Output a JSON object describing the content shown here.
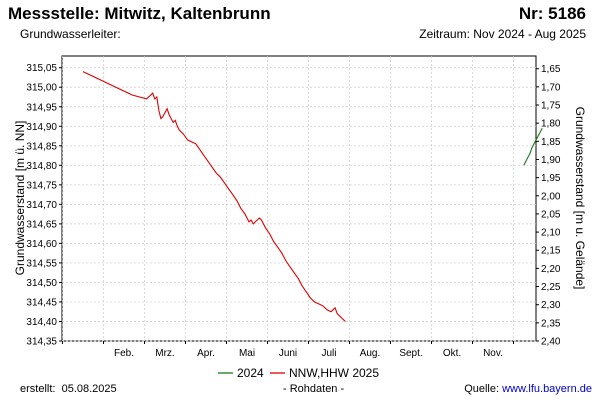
{
  "header": {
    "title": "Messstelle: Mitwitz, Kaltenbrunn",
    "nr": "Nr: 5186",
    "subtitle_left": "Grundwasserleiter:",
    "subtitle_right": "Zeitraum: Nov 2024 - Aug 2025"
  },
  "footer": {
    "created_label": "erstellt:",
    "created_date": "05.08.2025",
    "note": "- Rohdaten -",
    "source_label": "Quelle:",
    "source_link": "www.lfu.bayern.de"
  },
  "colors": {
    "series_2024": "#1a7a1a",
    "series_2025": "#e00000",
    "grid": "#cccccc"
  },
  "chart_data": {
    "type": "line",
    "ylabel_left": "Grundwasserstand [m ü. NN]",
    "ylabel_right": "Grundwasserstand [m u. Gelände]",
    "ylim_left": [
      314.35,
      315.08
    ],
    "ylim_right": [
      2.4,
      1.615
    ],
    "yticks_left": [
      "315,05",
      "315,00",
      "314,95",
      "314,90",
      "314,85",
      "314,80",
      "314,75",
      "314,70",
      "314,65",
      "314,60",
      "314,55",
      "314,50",
      "314,45",
      "314,40",
      "314,35"
    ],
    "yticks_right": [
      "1,65",
      "1,70",
      "1,75",
      "1,80",
      "1,85",
      "1,90",
      "1,95",
      "2,00",
      "2,05",
      "2,10",
      "2,15",
      "2,20",
      "2,25",
      "2,30",
      "2,35",
      "2,40"
    ],
    "xticks": [
      "Feb.",
      "Mrz.",
      "Apr.",
      "Mai",
      "Juni",
      "Juli",
      "Aug.",
      "Sept.",
      "Okt.",
      "Nov."
    ],
    "grid": true,
    "legend_position": "bottom",
    "series": [
      {
        "name": "2024",
        "points": [
          [
            10.75,
            314.8
          ],
          [
            10.8,
            314.81
          ],
          [
            10.85,
            314.82
          ],
          [
            10.9,
            314.83
          ],
          [
            10.95,
            314.845
          ],
          [
            11.0,
            314.855
          ],
          [
            11.05,
            314.865
          ],
          [
            11.1,
            314.875
          ],
          [
            11.15,
            314.885
          ],
          [
            11.2,
            314.895
          ]
        ]
      },
      {
        "name": "NNW,HHW 2025",
        "points": [
          [
            0.0,
            315.04
          ],
          [
            0.4,
            315.02
          ],
          [
            0.8,
            315.0
          ],
          [
            1.2,
            314.98
          ],
          [
            1.55,
            314.97
          ],
          [
            1.7,
            314.985
          ],
          [
            1.75,
            314.97
          ],
          [
            1.8,
            314.975
          ],
          [
            1.85,
            314.94
          ],
          [
            1.9,
            314.92
          ],
          [
            1.95,
            314.925
          ],
          [
            2.0,
            314.935
          ],
          [
            2.05,
            314.945
          ],
          [
            2.1,
            314.93
          ],
          [
            2.15,
            314.92
          ],
          [
            2.2,
            314.91
          ],
          [
            2.25,
            314.915
          ],
          [
            2.3,
            314.9
          ],
          [
            2.35,
            314.89
          ],
          [
            2.45,
            314.88
          ],
          [
            2.55,
            314.865
          ],
          [
            2.65,
            314.86
          ],
          [
            2.75,
            314.855
          ],
          [
            2.85,
            314.84
          ],
          [
            2.95,
            314.825
          ],
          [
            3.05,
            314.81
          ],
          [
            3.15,
            314.795
          ],
          [
            3.25,
            314.78
          ],
          [
            3.35,
            314.77
          ],
          [
            3.45,
            314.755
          ],
          [
            3.55,
            314.74
          ],
          [
            3.65,
            314.725
          ],
          [
            3.75,
            314.71
          ],
          [
            3.85,
            314.69
          ],
          [
            3.95,
            314.675
          ],
          [
            4.0,
            314.665
          ],
          [
            4.05,
            314.655
          ],
          [
            4.1,
            314.66
          ],
          [
            4.15,
            314.65
          ],
          [
            4.2,
            314.655
          ],
          [
            4.25,
            314.66
          ],
          [
            4.3,
            314.665
          ],
          [
            4.35,
            314.66
          ],
          [
            4.45,
            314.64
          ],
          [
            4.55,
            314.625
          ],
          [
            4.65,
            314.605
          ],
          [
            4.75,
            314.59
          ],
          [
            4.85,
            314.575
          ],
          [
            4.95,
            314.555
          ],
          [
            5.05,
            314.54
          ],
          [
            5.15,
            314.525
          ],
          [
            5.25,
            314.51
          ],
          [
            5.35,
            314.49
          ],
          [
            5.45,
            314.475
          ],
          [
            5.55,
            314.46
          ],
          [
            5.65,
            314.45
          ],
          [
            5.75,
            314.445
          ],
          [
            5.85,
            314.44
          ],
          [
            5.95,
            314.43
          ],
          [
            6.05,
            314.425
          ],
          [
            6.15,
            314.435
          ],
          [
            6.2,
            314.42
          ],
          [
            6.3,
            314.41
          ],
          [
            6.4,
            314.4
          ]
        ]
      }
    ]
  }
}
